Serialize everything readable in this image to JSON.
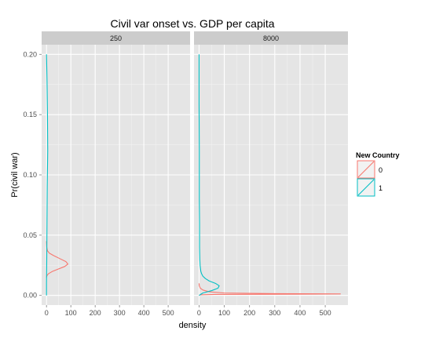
{
  "chart_data": {
    "type": "line",
    "title": "Civil var onset vs. GDP per capita",
    "xlabel": "density",
    "ylabel": "Pr(civil war)",
    "xlim": [
      -20,
      590
    ],
    "ylim": [
      -0.008,
      0.208
    ],
    "x_ticks": [
      0,
      100,
      200,
      300,
      400,
      500
    ],
    "y_ticks": [
      0.0,
      0.05,
      0.1,
      0.15,
      0.2
    ],
    "y_tick_labels": [
      "0.00",
      "0.05",
      "0.10",
      "0.15",
      "0.20"
    ],
    "grid": true,
    "legend": {
      "title": "New Country",
      "position": "right",
      "entries": [
        {
          "label": "0",
          "color": "#F8766D"
        },
        {
          "label": "1",
          "color": "#00BFC4"
        }
      ]
    },
    "panels": [
      {
        "strip": "250",
        "series": [
          {
            "group": "0",
            "color": "#F8766D",
            "points": [
              [
                0,
                0.015
              ],
              [
                2,
                0.0165
              ],
              [
                8,
                0.018
              ],
              [
                25,
                0.02
              ],
              [
                50,
                0.022
              ],
              [
                75,
                0.024
              ],
              [
                88,
                0.026
              ],
              [
                80,
                0.028
              ],
              [
                55,
                0.0305
              ],
              [
                30,
                0.033
              ],
              [
                12,
                0.035
              ],
              [
                4,
                0.037
              ],
              [
                1,
                0.04
              ],
              [
                0,
                0.045
              ]
            ]
          },
          {
            "group": "1",
            "color": "#00BFC4",
            "points": [
              [
                0,
                0.0
              ],
              [
                0,
                0.01
              ],
              [
                1,
                0.03
              ],
              [
                2,
                0.06
              ],
              [
                3,
                0.09
              ],
              [
                5,
                0.12
              ],
              [
                4,
                0.15
              ],
              [
                2,
                0.18
              ],
              [
                0,
                0.2
              ]
            ]
          }
        ]
      },
      {
        "strip": "8000",
        "series": [
          {
            "group": "0",
            "color": "#F8766D",
            "points": [
              [
                0,
                0.0
              ],
              [
                5,
                0.0005
              ],
              [
                60,
                0.0008
              ],
              [
                300,
                0.001
              ],
              [
                560,
                0.0012
              ],
              [
                300,
                0.0015
              ],
              [
                100,
                0.002
              ],
              [
                40,
                0.003
              ],
              [
                15,
                0.0045
              ],
              [
                5,
                0.006
              ],
              [
                1,
                0.008
              ],
              [
                0,
                0.01
              ]
            ]
          },
          {
            "group": "1",
            "color": "#00BFC4",
            "points": [
              [
                0,
                0.0
              ],
              [
                15,
                0.002
              ],
              [
                50,
                0.004
              ],
              [
                75,
                0.006
              ],
              [
                80,
                0.008
              ],
              [
                65,
                0.01
              ],
              [
                40,
                0.012
              ],
              [
                25,
                0.014
              ],
              [
                15,
                0.016
              ],
              [
                10,
                0.018
              ],
              [
                7,
                0.02
              ],
              [
                4,
                0.025
              ],
              [
                3,
                0.03
              ],
              [
                2,
                0.04
              ],
              [
                2,
                0.06
              ],
              [
                1,
                0.08
              ],
              [
                1,
                0.12
              ],
              [
                0,
                0.16
              ],
              [
                0,
                0.2
              ]
            ]
          }
        ]
      }
    ]
  }
}
